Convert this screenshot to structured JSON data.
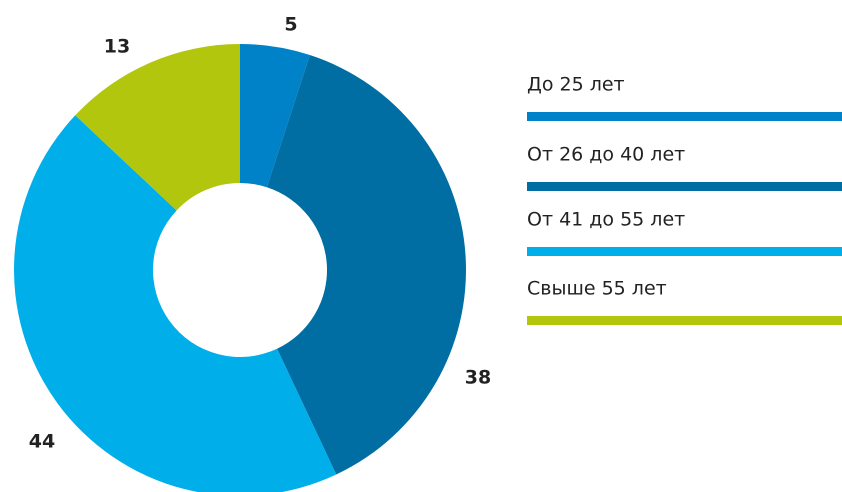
{
  "chart_data": {
    "type": "donut",
    "categories": [
      "До 25 лет",
      "От 26 до 40 лет",
      "От 41 до 55 лет",
      "Свыше 55 лет"
    ],
    "values": [
      5,
      38,
      44,
      13
    ],
    "colors": [
      "#0082c8",
      "#006da3",
      "#00aeea",
      "#b2c60e"
    ]
  }
}
